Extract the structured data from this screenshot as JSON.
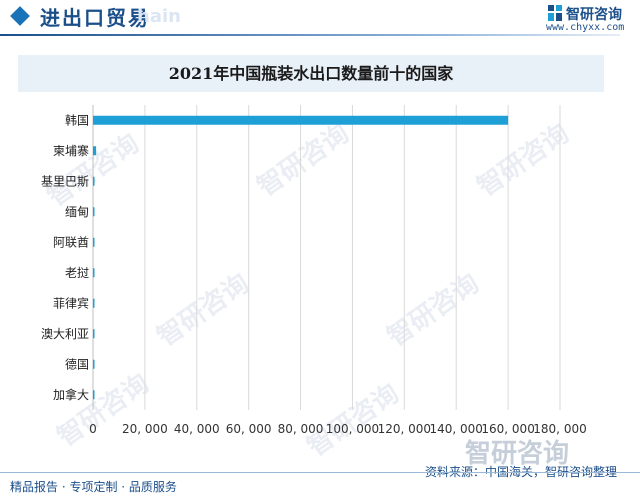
{
  "header": {
    "title": "进出口贸易",
    "ghost_text": "hain",
    "logo_text": "智研咨询",
    "site": "www.chyxx.com"
  },
  "watermark": {
    "text": "智研咨询",
    "big_text": "智研咨询"
  },
  "footer": {
    "left": "精品报告 · 专项定制 · 品质服务",
    "right": "资料来源：中国海关，智研咨询整理"
  },
  "colors": {
    "bar": "#1e9fd6",
    "brand": "#1b4f8a",
    "title_band": "#e8f0f8",
    "grid": "#d9d9d9"
  },
  "chart_data": {
    "type": "bar",
    "orientation": "horizontal",
    "title": "2021年中国瓶装水出口数量前十的国家",
    "categories": [
      "韩国",
      "柬埔寨",
      "基里巴斯",
      "缅甸",
      "阿联酋",
      "老挝",
      "菲律宾",
      "澳大利亚",
      "德国",
      "加拿大"
    ],
    "values": [
      160000,
      1200,
      450,
      350,
      300,
      250,
      200,
      150,
      120,
      100
    ],
    "xlim": [
      0,
      180000
    ],
    "xticks": [
      0,
      20000,
      40000,
      60000,
      80000,
      100000,
      120000,
      140000,
      160000,
      180000
    ],
    "xtick_labels": [
      "0",
      "20, 000",
      "40, 000",
      "60, 000",
      "80, 000",
      "100, 000",
      "120, 000",
      "140, 000",
      "160, 000",
      "180, 000"
    ],
    "grid": "vertical"
  }
}
